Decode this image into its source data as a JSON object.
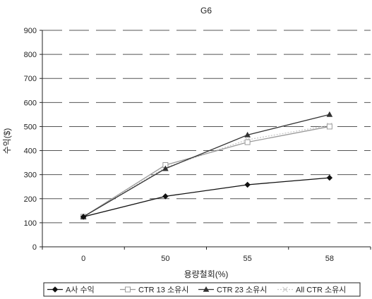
{
  "chart_data": {
    "type": "line",
    "title": "G6",
    "xlabel": "용량철회(%)",
    "ylabel": "수익($)",
    "categories": [
      "0",
      "50",
      "55",
      "58"
    ],
    "ylim": [
      0,
      900
    ],
    "yticks": [
      0,
      100,
      200,
      300,
      400,
      500,
      600,
      700,
      800,
      900
    ],
    "grid": "horizontal",
    "legend_position": "bottom",
    "series": [
      {
        "name": "A사 수익",
        "values": [
          125,
          210,
          258,
          287
        ],
        "color": "#111111",
        "marker": "diamond",
        "dash": "solid"
      },
      {
        "name": "CTR 13 소유시",
        "values": [
          125,
          340,
          435,
          500
        ],
        "color": "#9a9a9a",
        "marker": "square-open",
        "dash": "solid"
      },
      {
        "name": "CTR 23 소유시",
        "values": [
          125,
          325,
          465,
          550
        ],
        "color": "#333333",
        "marker": "triangle",
        "dash": "solid"
      },
      {
        "name": "All CTR 소유시",
        "values": [
          125,
          330,
          445,
          505
        ],
        "color": "#c8c8c8",
        "marker": "x",
        "dash": "dotted"
      }
    ]
  }
}
